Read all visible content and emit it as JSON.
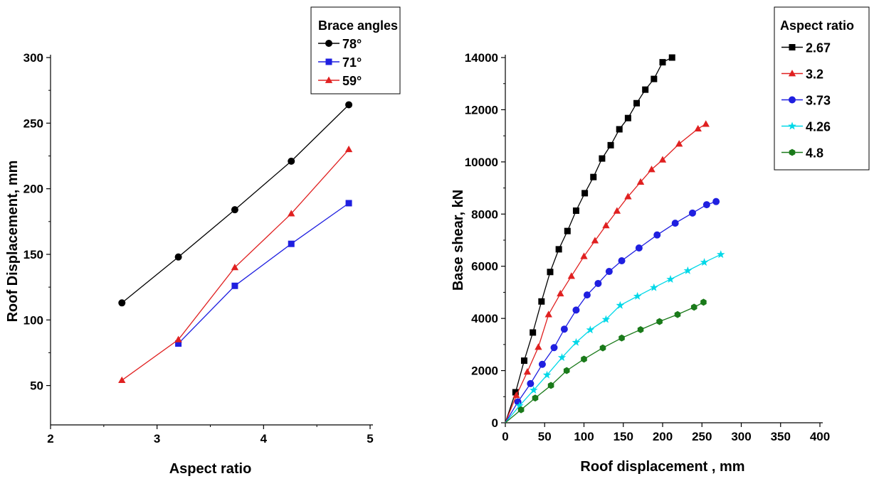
{
  "chart_data": [
    {
      "type": "line",
      "xlabel": "Aspect ratio",
      "ylabel": "Roof Displacement, mm",
      "xlim": [
        2,
        5
      ],
      "ylim": [
        20,
        300
      ],
      "xticks": [
        "2",
        "3",
        "4",
        "5"
      ],
      "yticks": [
        "50",
        "100",
        "150",
        "200",
        "250",
        "300"
      ],
      "legend": {
        "title": "Brace angles",
        "position": "top-right"
      },
      "x": [
        2.67,
        3.2,
        3.73,
        4.26,
        4.8
      ],
      "series": [
        {
          "name": "78°",
          "color": "#000000",
          "marker": "circle",
          "points": [
            [
              2.67,
              113
            ],
            [
              3.2,
              148
            ],
            [
              3.73,
              184
            ],
            [
              4.26,
              221
            ],
            [
              4.8,
              264
            ]
          ]
        },
        {
          "name": "71°",
          "color": "#1f1fe0",
          "marker": "square",
          "points": [
            [
              3.2,
              82
            ],
            [
              3.73,
              126
            ],
            [
              4.26,
              158
            ],
            [
              4.8,
              189
            ]
          ]
        },
        {
          "name": "59°",
          "color": "#e02020",
          "marker": "triangle",
          "points": [
            [
              2.67,
              54
            ],
            [
              3.2,
              85
            ],
            [
              3.73,
              140
            ],
            [
              4.26,
              181
            ],
            [
              4.8,
              230
            ]
          ]
        }
      ]
    },
    {
      "type": "line",
      "xlabel": "Roof displacement , mm",
      "ylabel": "Base shear, kN",
      "xlim": [
        0,
        400
      ],
      "ylim": [
        0,
        14000
      ],
      "xticks": [
        "0",
        "50",
        "100",
        "150",
        "200",
        "250",
        "300",
        "350",
        "400"
      ],
      "yticks": [
        "0",
        "2000",
        "4000",
        "6000",
        "8000",
        "10000",
        "12000",
        "14000"
      ],
      "legend": {
        "title": "Aspect ratio",
        "position": "top-right"
      },
      "series": [
        {
          "name": "2.67",
          "color": "#000000",
          "marker": "square",
          "points": [
            [
              0,
              0
            ],
            [
              13,
              1170
            ],
            [
              24,
              2380
            ],
            [
              35,
              3460
            ],
            [
              46,
              4650
            ],
            [
              57,
              5780
            ],
            [
              68,
              6650
            ],
            [
              79,
              7350
            ],
            [
              90,
              8130
            ],
            [
              101,
              8800
            ],
            [
              112,
              9420
            ],
            [
              123,
              10130
            ],
            [
              134,
              10640
            ],
            [
              145,
              11250
            ],
            [
              156,
              11680
            ],
            [
              167,
              12250
            ],
            [
              178,
              12770
            ],
            [
              189,
              13180
            ],
            [
              200,
              13820
            ],
            [
              212,
              14000
            ]
          ]
        },
        {
          "name": "3.2",
          "color": "#e02020",
          "marker": "triangle",
          "points": [
            [
              0,
              0
            ],
            [
              14,
              1050
            ],
            [
              28,
              1950
            ],
            [
              42,
              2900
            ],
            [
              55,
              4150
            ],
            [
              70,
              4950
            ],
            [
              84,
              5620
            ],
            [
              100,
              6380
            ],
            [
              114,
              6980
            ],
            [
              128,
              7560
            ],
            [
              142,
              8120
            ],
            [
              156,
              8670
            ],
            [
              172,
              9230
            ],
            [
              186,
              9710
            ],
            [
              200,
              10080
            ],
            [
              221,
              10690
            ],
            [
              245,
              11270
            ],
            [
              255,
              11450
            ]
          ]
        },
        {
          "name": "3.73",
          "color": "#1f1fe0",
          "marker": "circle",
          "points": [
            [
              0,
              0
            ],
            [
              16,
              800
            ],
            [
              32,
              1500
            ],
            [
              47,
              2240
            ],
            [
              62,
              2880
            ],
            [
              75,
              3590
            ],
            [
              90,
              4320
            ],
            [
              104,
              4900
            ],
            [
              118,
              5340
            ],
            [
              132,
              5800
            ],
            [
              148,
              6210
            ],
            [
              170,
              6700
            ],
            [
              193,
              7200
            ],
            [
              216,
              7650
            ],
            [
              238,
              8040
            ],
            [
              256,
              8360
            ],
            [
              268,
              8480
            ]
          ]
        },
        {
          "name": "4.26",
          "color": "#00d8e8",
          "marker": "star",
          "points": [
            [
              0,
              0
            ],
            [
              18,
              650
            ],
            [
              36,
              1250
            ],
            [
              53,
              1830
            ],
            [
              72,
              2500
            ],
            [
              90,
              3080
            ],
            [
              108,
              3560
            ],
            [
              128,
              3960
            ],
            [
              146,
              4500
            ],
            [
              168,
              4850
            ],
            [
              189,
              5180
            ],
            [
              210,
              5500
            ],
            [
              232,
              5830
            ],
            [
              253,
              6150
            ],
            [
              274,
              6450
            ]
          ]
        },
        {
          "name": "4.8",
          "color": "#1a7a1a",
          "marker": "hexagon",
          "points": [
            [
              0,
              0
            ],
            [
              20,
              500
            ],
            [
              38,
              950
            ],
            [
              58,
              1430
            ],
            [
              78,
              2000
            ],
            [
              100,
              2440
            ],
            [
              124,
              2870
            ],
            [
              148,
              3250
            ],
            [
              172,
              3570
            ],
            [
              196,
              3880
            ],
            [
              219,
              4150
            ],
            [
              240,
              4430
            ],
            [
              252,
              4620
            ]
          ]
        }
      ]
    }
  ]
}
